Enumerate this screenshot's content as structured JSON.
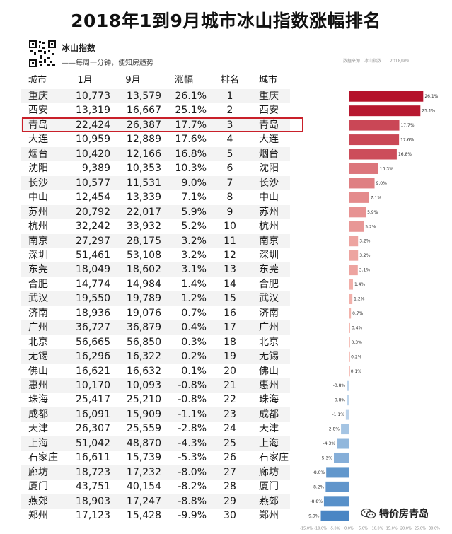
{
  "title": "2018年1到9月城市冰山指数涨幅排名",
  "brand": {
    "name": "冰山指数",
    "slogan": "——每周一分钟，便知房趋势"
  },
  "meta": {
    "source": "数据来源：冰山指数",
    "date": "2018/9/9"
  },
  "table": {
    "headers": [
      "城市",
      "1月",
      "9月",
      "涨幅",
      "排名",
      "城市"
    ],
    "rows": [
      {
        "city": "重庆",
        "jan": "10,773",
        "sep": "13,579",
        "pct": "26.1%",
        "rank": "1"
      },
      {
        "city": "西安",
        "jan": "13,319",
        "sep": "16,667",
        "pct": "25.1%",
        "rank": "2"
      },
      {
        "city": "青岛",
        "jan": "22,424",
        "sep": "26,387",
        "pct": "17.7%",
        "rank": "3"
      },
      {
        "city": "大连",
        "jan": "10,959",
        "sep": "12,889",
        "pct": "17.6%",
        "rank": "4"
      },
      {
        "city": "烟台",
        "jan": "10,420",
        "sep": "12,166",
        "pct": "16.8%",
        "rank": "5"
      },
      {
        "city": "沈阳",
        "jan": "9,389",
        "sep": "10,353",
        "pct": "10.3%",
        "rank": "6"
      },
      {
        "city": "长沙",
        "jan": "10,577",
        "sep": "11,531",
        "pct": "9.0%",
        "rank": "7"
      },
      {
        "city": "中山",
        "jan": "12,454",
        "sep": "13,339",
        "pct": "7.1%",
        "rank": "8"
      },
      {
        "city": "苏州",
        "jan": "20,792",
        "sep": "22,017",
        "pct": "5.9%",
        "rank": "9"
      },
      {
        "city": "杭州",
        "jan": "32,242",
        "sep": "33,932",
        "pct": "5.2%",
        "rank": "10"
      },
      {
        "city": "南京",
        "jan": "27,297",
        "sep": "28,175",
        "pct": "3.2%",
        "rank": "11"
      },
      {
        "city": "深圳",
        "jan": "51,461",
        "sep": "53,108",
        "pct": "3.2%",
        "rank": "12"
      },
      {
        "city": "东莞",
        "jan": "18,049",
        "sep": "18,602",
        "pct": "3.1%",
        "rank": "13"
      },
      {
        "city": "合肥",
        "jan": "14,774",
        "sep": "14,984",
        "pct": "1.4%",
        "rank": "14"
      },
      {
        "city": "武汉",
        "jan": "19,550",
        "sep": "19,789",
        "pct": "1.2%",
        "rank": "15"
      },
      {
        "city": "济南",
        "jan": "18,936",
        "sep": "19,076",
        "pct": "0.7%",
        "rank": "16"
      },
      {
        "city": "广州",
        "jan": "36,727",
        "sep": "36,879",
        "pct": "0.4%",
        "rank": "17"
      },
      {
        "city": "北京",
        "jan": "56,665",
        "sep": "56,850",
        "pct": "0.3%",
        "rank": "18"
      },
      {
        "city": "无锡",
        "jan": "16,296",
        "sep": "16,322",
        "pct": "0.2%",
        "rank": "19"
      },
      {
        "city": "佛山",
        "jan": "16,621",
        "sep": "16,632",
        "pct": "0.1%",
        "rank": "20"
      },
      {
        "city": "惠州",
        "jan": "10,170",
        "sep": "10,093",
        "pct": "-0.8%",
        "rank": "21"
      },
      {
        "city": "珠海",
        "jan": "25,417",
        "sep": "25,210",
        "pct": "-0.8%",
        "rank": "22"
      },
      {
        "city": "成都",
        "jan": "16,091",
        "sep": "15,909",
        "pct": "-1.1%",
        "rank": "23"
      },
      {
        "city": "天津",
        "jan": "26,307",
        "sep": "25,559",
        "pct": "-2.8%",
        "rank": "24"
      },
      {
        "city": "上海",
        "jan": "51,042",
        "sep": "48,870",
        "pct": "-4.3%",
        "rank": "25"
      },
      {
        "city": "石家庄",
        "jan": "16,611",
        "sep": "15,739",
        "pct": "-5.3%",
        "rank": "26"
      },
      {
        "city": "廊坊",
        "jan": "18,723",
        "sep": "17,232",
        "pct": "-8.0%",
        "rank": "27"
      },
      {
        "city": "厦门",
        "jan": "43,751",
        "sep": "40,154",
        "pct": "-8.2%",
        "rank": "28"
      },
      {
        "city": "燕郊",
        "jan": "18,903",
        "sep": "17,247",
        "pct": "-8.8%",
        "rank": "29"
      },
      {
        "city": "郑州",
        "jan": "17,123",
        "sep": "15,428",
        "pct": "-9.9%",
        "rank": "30"
      }
    ],
    "highlight_rank": 3
  },
  "chart_data": {
    "type": "bar",
    "orientation": "horizontal",
    "categories": [
      "重庆",
      "西安",
      "青岛",
      "大连",
      "烟台",
      "沈阳",
      "长沙",
      "中山",
      "苏州",
      "杭州",
      "南京",
      "深圳",
      "东莞",
      "合肥",
      "武汉",
      "济南",
      "广州",
      "北京",
      "无锡",
      "佛山",
      "惠州",
      "珠海",
      "成都",
      "天津",
      "上海",
      "石家庄",
      "廊坊",
      "厦门",
      "燕郊",
      "郑州"
    ],
    "values": [
      26.1,
      25.1,
      17.7,
      17.6,
      16.8,
      10.3,
      9.0,
      7.1,
      5.9,
      5.2,
      3.2,
      3.2,
      3.1,
      1.4,
      1.2,
      0.7,
      0.4,
      0.3,
      0.2,
      0.1,
      -0.8,
      -0.8,
      -1.1,
      -2.8,
      -4.3,
      -5.3,
      -8.0,
      -8.2,
      -8.8,
      -9.9
    ],
    "data_labels": [
      "26.1%",
      "25.1%",
      "17.7%",
      "17.6%",
      "16.8%",
      "10.3%",
      "9.0%",
      "7.1%",
      "5.9%",
      "5.2%",
      "3.2%",
      "3.2%",
      "3.1%",
      "1.4%",
      "1.2%",
      "0.7%",
      "0.4%",
      "0.3%",
      "0.2%",
      "0.1%",
      "-0.8%",
      "-0.8%",
      "-1.1%",
      "-2.8%",
      "-4.3%",
      "-5.3%",
      "-8.0%",
      "-8.2%",
      "-8.8%",
      "-9.9%"
    ],
    "xlim": [
      -15,
      30
    ],
    "x_ticks": [
      "-15.0%",
      "-10.0%",
      "-5.0%",
      "0.0%",
      "5.0%",
      "10.0%",
      "15.0%",
      "20.0%",
      "25.0%",
      "30.0%"
    ],
    "positive_colors": {
      "dark": "#b5122b",
      "light": "#f5b8b0"
    },
    "negative_colors": {
      "light": "#c8dcef",
      "dark": "#4a86c4"
    },
    "legend": "none",
    "grid": false
  },
  "watermark": {
    "icon": "wechat-icon",
    "text": "特价房青岛"
  }
}
